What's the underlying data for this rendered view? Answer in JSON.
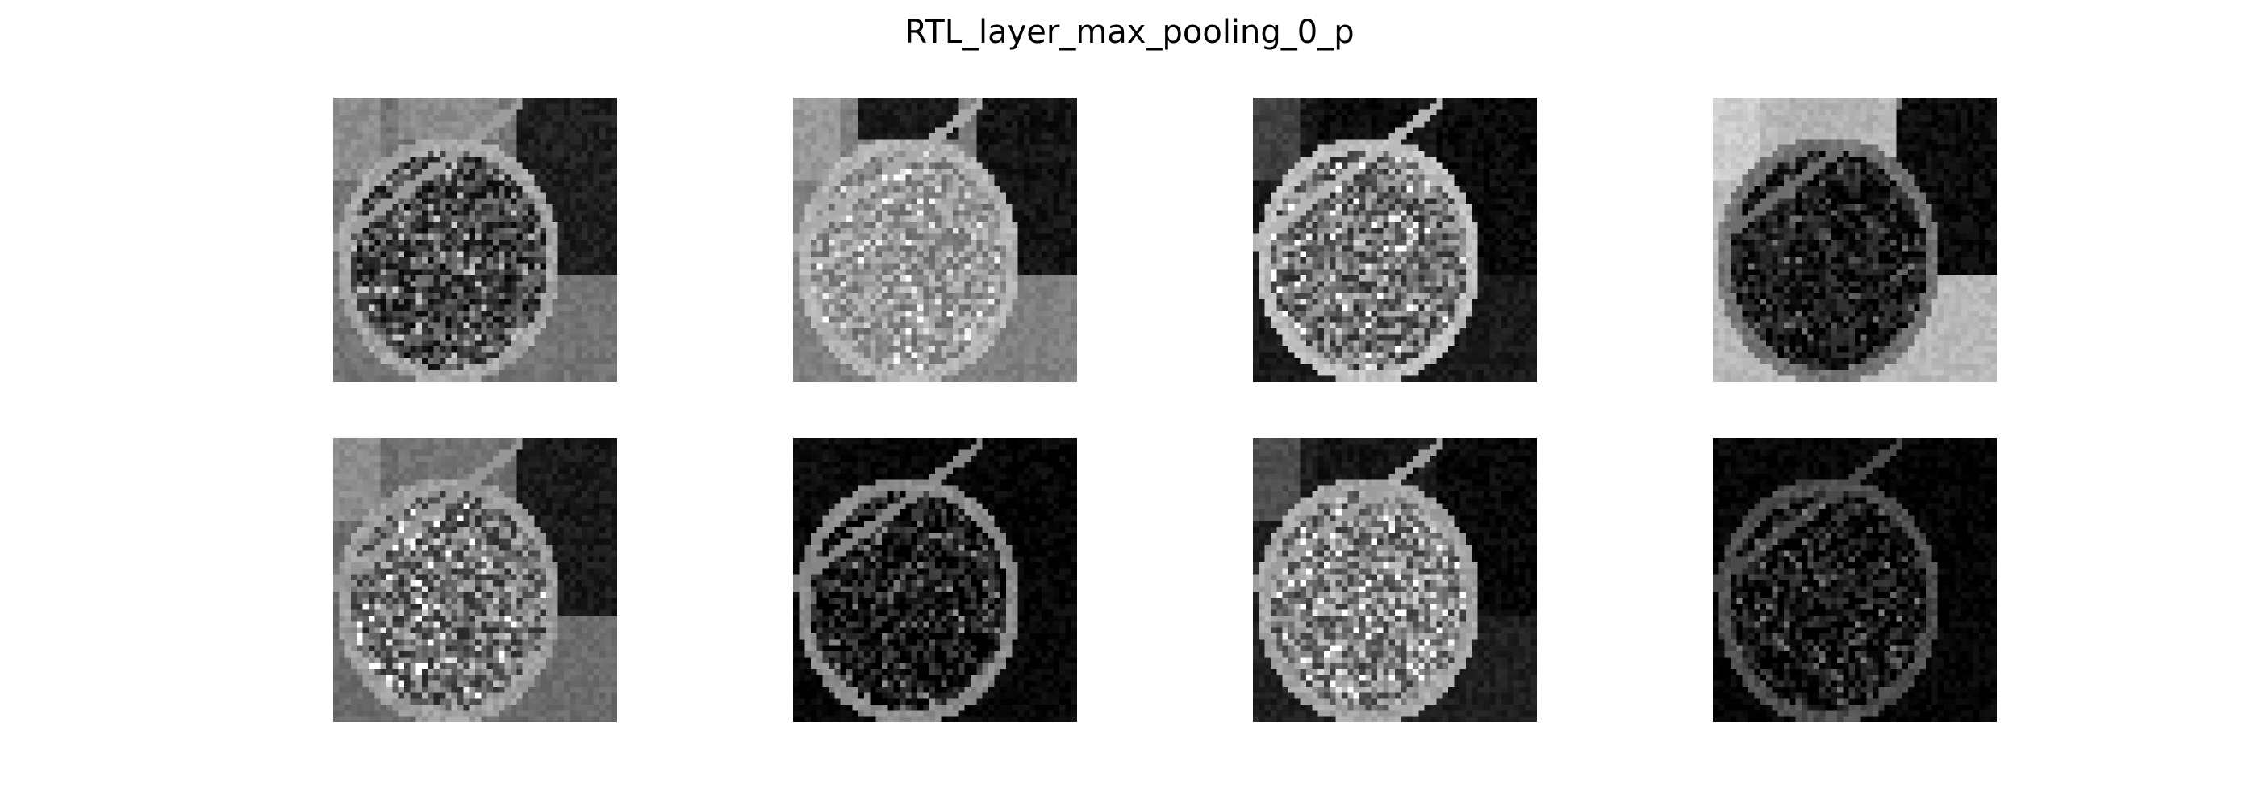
{
  "figure": {
    "title": "RTL_layer_max_pooling_0_p"
  },
  "feature_maps": [
    {
      "channel": 0,
      "tone": "mid-gray background, dark bowl interior"
    },
    {
      "channel": 1,
      "tone": "bright gray bowl, dark background"
    },
    {
      "channel": 2,
      "tone": "dark background, bright bowl texture"
    },
    {
      "channel": 3,
      "tone": "light gray background, dark bowl"
    },
    {
      "channel": 4,
      "tone": "mid-gray, bright bowl texture"
    },
    {
      "channel": 5,
      "tone": "black background, sparse edges"
    },
    {
      "channel": 6,
      "tone": "dark background, bright bowl"
    },
    {
      "channel": 7,
      "tone": "black, faint edges"
    }
  ]
}
